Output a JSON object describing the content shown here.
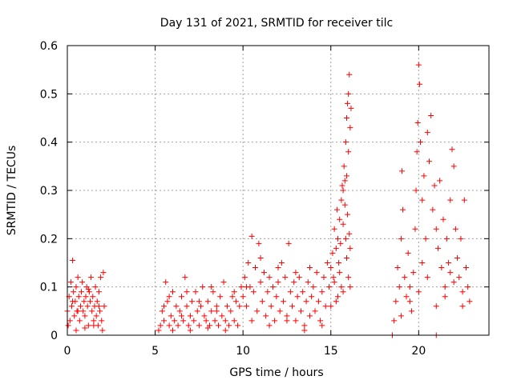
{
  "chart_data": {
    "type": "scatter",
    "title": "Day 131 of 2021, SRMTID for receiver tilc",
    "xlabel": "GPS time / hours",
    "ylabel": "SRMTID / TECUs",
    "xlim": [
      0,
      24
    ],
    "ylim": [
      0,
      0.6
    ],
    "xticks": [
      0,
      5,
      10,
      15,
      20
    ],
    "xtick_labels": [
      "0",
      "5",
      "10",
      "15",
      "20"
    ],
    "yticks": [
      0,
      0.1,
      0.2,
      0.3,
      0.4,
      0.5,
      0.6
    ],
    "ytick_labels": [
      "0",
      "0.1",
      "0.2",
      "0.3",
      "0.4",
      "0.5",
      "0.6"
    ],
    "grid": true,
    "marker": "+",
    "color": "#ff0000",
    "series": [
      {
        "name": "SRMTID",
        "points": [
          [
            0.0,
            0.05
          ],
          [
            0.1,
            0.08
          ],
          [
            0.15,
            0.03
          ],
          [
            0.2,
            0.11
          ],
          [
            0.25,
            0.06
          ],
          [
            0.3,
            0.155
          ],
          [
            0.35,
            0.09
          ],
          [
            0.4,
            0.04
          ],
          [
            0.45,
            0.07
          ],
          [
            0.5,
            0.1
          ],
          [
            0.55,
            0.05
          ],
          [
            0.6,
            0.12
          ],
          [
            0.65,
            0.08
          ],
          [
            0.7,
            0.03
          ],
          [
            0.75,
            0.06
          ],
          [
            0.8,
            0.09
          ],
          [
            0.85,
            0.11
          ],
          [
            0.9,
            0.05
          ],
          [
            0.95,
            0.07
          ],
          [
            1.0,
            0.04
          ],
          [
            1.05,
            0.08
          ],
          [
            1.1,
            0.1
          ],
          [
            1.15,
            0.06
          ],
          [
            1.2,
            0.02
          ],
          [
            1.25,
            0.09
          ],
          [
            1.3,
            0.07
          ],
          [
            1.35,
            0.12
          ],
          [
            1.4,
            0.05
          ],
          [
            1.45,
            0.08
          ],
          [
            1.5,
            0.03
          ],
          [
            1.55,
            0.06
          ],
          [
            1.6,
            0.1
          ],
          [
            1.65,
            0.04
          ],
          [
            1.7,
            0.07
          ],
          [
            1.75,
            0.02
          ],
          [
            1.8,
            0.09
          ],
          [
            1.85,
            0.05
          ],
          [
            1.9,
            0.12
          ],
          [
            1.95,
            0.03
          ],
          [
            2.0,
            0.01
          ],
          [
            2.05,
            0.13
          ],
          [
            2.1,
            0.06
          ],
          [
            0.05,
            0.02
          ],
          [
            0.5,
            0.01
          ],
          [
            1.0,
            0.015
          ],
          [
            1.5,
            0.02
          ],
          [
            0.3,
            0.07
          ],
          [
            0.6,
            0.05
          ],
          [
            1.2,
            0.095
          ],
          [
            1.8,
            0.06
          ],
          [
            5.2,
            0.01
          ],
          [
            5.3,
            0.02
          ],
          [
            5.4,
            0.05
          ],
          [
            5.5,
            0.03
          ],
          [
            5.6,
            0.11
          ],
          [
            5.7,
            0.07
          ],
          [
            5.8,
            0.02
          ],
          [
            5.9,
            0.04
          ],
          [
            6.0,
            0.09
          ],
          [
            6.1,
            0.03
          ],
          [
            6.2,
            0.06
          ],
          [
            6.3,
            0.02
          ],
          [
            6.4,
            0.05
          ],
          [
            6.5,
            0.08
          ],
          [
            6.6,
            0.03
          ],
          [
            6.7,
            0.12
          ],
          [
            6.8,
            0.06
          ],
          [
            6.9,
            0.02
          ],
          [
            7.0,
            0.04
          ],
          [
            7.1,
            0.07
          ],
          [
            7.2,
            0.03
          ],
          [
            7.3,
            0.09
          ],
          [
            7.4,
            0.05
          ],
          [
            7.5,
            0.02
          ],
          [
            7.6,
            0.06
          ],
          [
            7.7,
            0.1
          ],
          [
            7.8,
            0.04
          ],
          [
            7.9,
            0.03
          ],
          [
            8.0,
            0.07
          ],
          [
            8.1,
            0.02
          ],
          [
            8.2,
            0.05
          ],
          [
            8.3,
            0.09
          ],
          [
            8.4,
            0.03
          ],
          [
            8.5,
            0.06
          ],
          [
            8.6,
            0.02
          ],
          [
            8.7,
            0.08
          ],
          [
            8.8,
            0.04
          ],
          [
            8.9,
            0.11
          ],
          [
            9.0,
            0.03
          ],
          [
            9.1,
            0.06
          ],
          [
            9.2,
            0.02
          ],
          [
            9.3,
            0.05
          ],
          [
            9.4,
            0.08
          ],
          [
            9.5,
            0.03
          ],
          [
            9.6,
            0.07
          ],
          [
            9.7,
            0.02
          ],
          [
            9.8,
            0.06
          ],
          [
            9.9,
            0.1
          ],
          [
            5.5,
            0.06
          ],
          [
            6.5,
            0.04
          ],
          [
            7.5,
            0.07
          ],
          [
            8.5,
            0.05
          ],
          [
            9.5,
            0.09
          ],
          [
            6.0,
            0.01
          ],
          [
            7.0,
            0.01
          ],
          [
            8.0,
            0.015
          ],
          [
            9.0,
            0.01
          ],
          [
            5.8,
            0.08
          ],
          [
            6.8,
            0.09
          ],
          [
            8.2,
            0.1
          ],
          [
            10.0,
            0.08
          ],
          [
            10.1,
            0.12
          ],
          [
            10.2,
            0.06
          ],
          [
            10.3,
            0.15
          ],
          [
            10.4,
            0.1
          ],
          [
            10.5,
            0.205
          ],
          [
            10.6,
            0.09
          ],
          [
            10.7,
            0.14
          ],
          [
            10.8,
            0.05
          ],
          [
            10.9,
            0.19
          ],
          [
            11.0,
            0.11
          ],
          [
            11.1,
            0.07
          ],
          [
            11.2,
            0.13
          ],
          [
            11.3,
            0.04
          ],
          [
            11.4,
            0.09
          ],
          [
            11.5,
            0.12
          ],
          [
            11.6,
            0.06
          ],
          [
            11.7,
            0.1
          ],
          [
            11.8,
            0.03
          ],
          [
            11.9,
            0.08
          ],
          [
            12.0,
            0.11
          ],
          [
            12.1,
            0.05
          ],
          [
            12.2,
            0.15
          ],
          [
            12.3,
            0.07
          ],
          [
            12.4,
            0.12
          ],
          [
            12.5,
            0.04
          ],
          [
            12.6,
            0.19
          ],
          [
            12.7,
            0.09
          ],
          [
            12.8,
            0.06
          ],
          [
            12.9,
            0.11
          ],
          [
            13.0,
            0.03
          ],
          [
            13.1,
            0.08
          ],
          [
            13.2,
            0.12
          ],
          [
            13.3,
            0.05
          ],
          [
            13.4,
            0.09
          ],
          [
            13.5,
            0.02
          ],
          [
            13.6,
            0.07
          ],
          [
            13.7,
            0.11
          ],
          [
            13.8,
            0.04
          ],
          [
            13.9,
            0.08
          ],
          [
            14.0,
            0.1
          ],
          [
            14.1,
            0.05
          ],
          [
            14.2,
            0.13
          ],
          [
            14.3,
            0.07
          ],
          [
            14.4,
            0.03
          ],
          [
            14.5,
            0.09
          ],
          [
            14.6,
            0.12
          ],
          [
            14.7,
            0.06
          ],
          [
            14.8,
            0.15
          ],
          [
            14.9,
            0.1
          ],
          [
            10.5,
            0.03
          ],
          [
            11.5,
            0.02
          ],
          [
            12.5,
            0.03
          ],
          [
            13.5,
            0.01
          ],
          [
            14.5,
            0.02
          ],
          [
            11.0,
            0.16
          ],
          [
            12.0,
            0.14
          ],
          [
            13.0,
            0.13
          ],
          [
            10.2,
            0.1
          ],
          [
            13.8,
            0.14
          ],
          [
            15.0,
            0.14
          ],
          [
            15.1,
            0.17
          ],
          [
            15.15,
            0.12
          ],
          [
            15.2,
            0.22
          ],
          [
            15.3,
            0.18
          ],
          [
            15.35,
            0.26
          ],
          [
            15.4,
            0.2
          ],
          [
            15.45,
            0.15
          ],
          [
            15.5,
            0.24
          ],
          [
            15.55,
            0.19
          ],
          [
            15.6,
            0.28
          ],
          [
            15.65,
            0.31
          ],
          [
            15.7,
            0.23
          ],
          [
            15.75,
            0.35
          ],
          [
            15.8,
            0.27
          ],
          [
            15.85,
            0.4
          ],
          [
            15.9,
            0.45
          ],
          [
            15.95,
            0.48
          ],
          [
            16.0,
            0.5
          ],
          [
            16.05,
            0.54
          ],
          [
            16.1,
            0.43
          ],
          [
            16.15,
            0.47
          ],
          [
            15.9,
            0.33
          ],
          [
            16.0,
            0.38
          ],
          [
            15.8,
            0.32
          ],
          [
            15.7,
            0.3
          ],
          [
            16.05,
            0.21
          ],
          [
            16.1,
            0.18
          ],
          [
            15.6,
            0.1
          ],
          [
            15.5,
            0.13
          ],
          [
            15.3,
            0.07
          ],
          [
            15.2,
            0.11
          ],
          [
            15.4,
            0.08
          ],
          [
            15.0,
            0.06
          ],
          [
            15.9,
            0.16
          ],
          [
            16.0,
            0.12
          ],
          [
            16.1,
            0.1
          ],
          [
            15.7,
            0.09
          ],
          [
            15.85,
            0.2
          ],
          [
            15.95,
            0.25
          ],
          [
            18.5,
            0.0
          ],
          [
            18.6,
            0.03
          ],
          [
            18.7,
            0.07
          ],
          [
            18.8,
            0.14
          ],
          [
            18.9,
            0.1
          ],
          [
            19.0,
            0.2
          ],
          [
            19.05,
            0.34
          ],
          [
            19.1,
            0.26
          ],
          [
            19.2,
            0.12
          ],
          [
            19.3,
            0.08
          ],
          [
            19.4,
            0.17
          ],
          [
            19.5,
            0.1
          ],
          [
            19.6,
            0.05
          ],
          [
            19.7,
            0.13
          ],
          [
            19.8,
            0.22
          ],
          [
            19.85,
            0.3
          ],
          [
            19.9,
            0.38
          ],
          [
            19.95,
            0.44
          ],
          [
            20.0,
            0.56
          ],
          [
            20.05,
            0.52
          ],
          [
            20.1,
            0.4
          ],
          [
            20.2,
            0.28
          ],
          [
            20.3,
            0.33
          ],
          [
            20.4,
            0.2
          ],
          [
            20.5,
            0.42
          ],
          [
            20.6,
            0.36
          ],
          [
            20.7,
            0.455
          ],
          [
            20.8,
            0.26
          ],
          [
            20.9,
            0.31
          ],
          [
            21.0,
            0.22
          ],
          [
            21.1,
            0.18
          ],
          [
            21.2,
            0.32
          ],
          [
            21.3,
            0.14
          ],
          [
            21.4,
            0.24
          ],
          [
            21.5,
            0.1
          ],
          [
            21.6,
            0.2
          ],
          [
            21.7,
            0.15
          ],
          [
            21.8,
            0.28
          ],
          [
            21.9,
            0.385
          ],
          [
            22.0,
            0.35
          ],
          [
            22.1,
            0.22
          ],
          [
            22.2,
            0.16
          ],
          [
            22.3,
            0.12
          ],
          [
            22.4,
            0.2
          ],
          [
            22.5,
            0.09
          ],
          [
            22.6,
            0.28
          ],
          [
            22.7,
            0.14
          ],
          [
            22.8,
            0.1
          ],
          [
            22.9,
            0.07
          ],
          [
            21.0,
            0.0
          ],
          [
            19.5,
            0.07
          ],
          [
            20.0,
            0.09
          ],
          [
            20.5,
            0.12
          ],
          [
            21.0,
            0.06
          ],
          [
            21.5,
            0.08
          ],
          [
            22.0,
            0.11
          ],
          [
            22.5,
            0.06
          ],
          [
            19.0,
            0.04
          ],
          [
            20.2,
            0.15
          ],
          [
            21.8,
            0.13
          ]
        ]
      }
    ]
  }
}
